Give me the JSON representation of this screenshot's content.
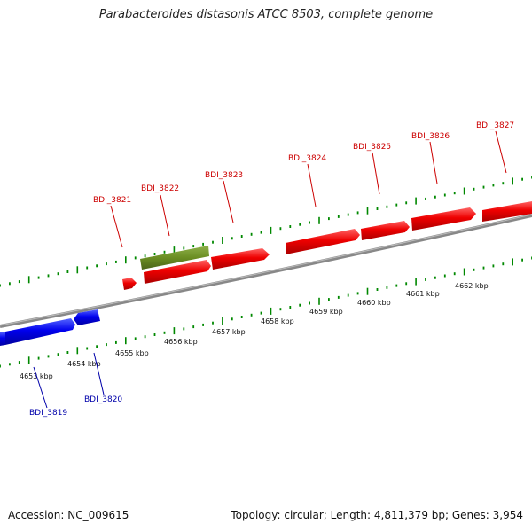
{
  "title": "Parabacteroides distasonis ATCC 8503, complete genome",
  "footer": {
    "accession": "Accession: NC_009615",
    "summary": "Topology: circular; Length: 4,811,379 bp; Genes: 3,954"
  },
  "colors": {
    "forward_gene": "#ee0000",
    "reverse_gene": "#0000dd",
    "highlight_gene": "#6b8e23",
    "backbone": "#888888",
    "ticks": "#008800",
    "forward_label": "#cc0000",
    "reverse_label": "#0000aa"
  },
  "scale_labels": [
    "4653 kbp",
    "4654 kbp",
    "4655 kbp",
    "4656 kbp",
    "4657 kbp",
    "4658 kbp",
    "4659 kbp",
    "4660 kbp",
    "4661 kbp",
    "4662 kbp"
  ],
  "genes": [
    {
      "id": "BDI_3819",
      "strand": "reverse"
    },
    {
      "id": "BDI_3820",
      "strand": "reverse"
    },
    {
      "id": "BDI_3821",
      "strand": "forward"
    },
    {
      "id": "BDI_3822",
      "strand": "forward"
    },
    {
      "id": "BDI_3823",
      "strand": "forward"
    },
    {
      "id": "BDI_3824",
      "strand": "forward"
    },
    {
      "id": "BDI_3825",
      "strand": "forward"
    },
    {
      "id": "BDI_3826",
      "strand": "forward"
    },
    {
      "id": "BDI_3827",
      "strand": "forward"
    }
  ]
}
